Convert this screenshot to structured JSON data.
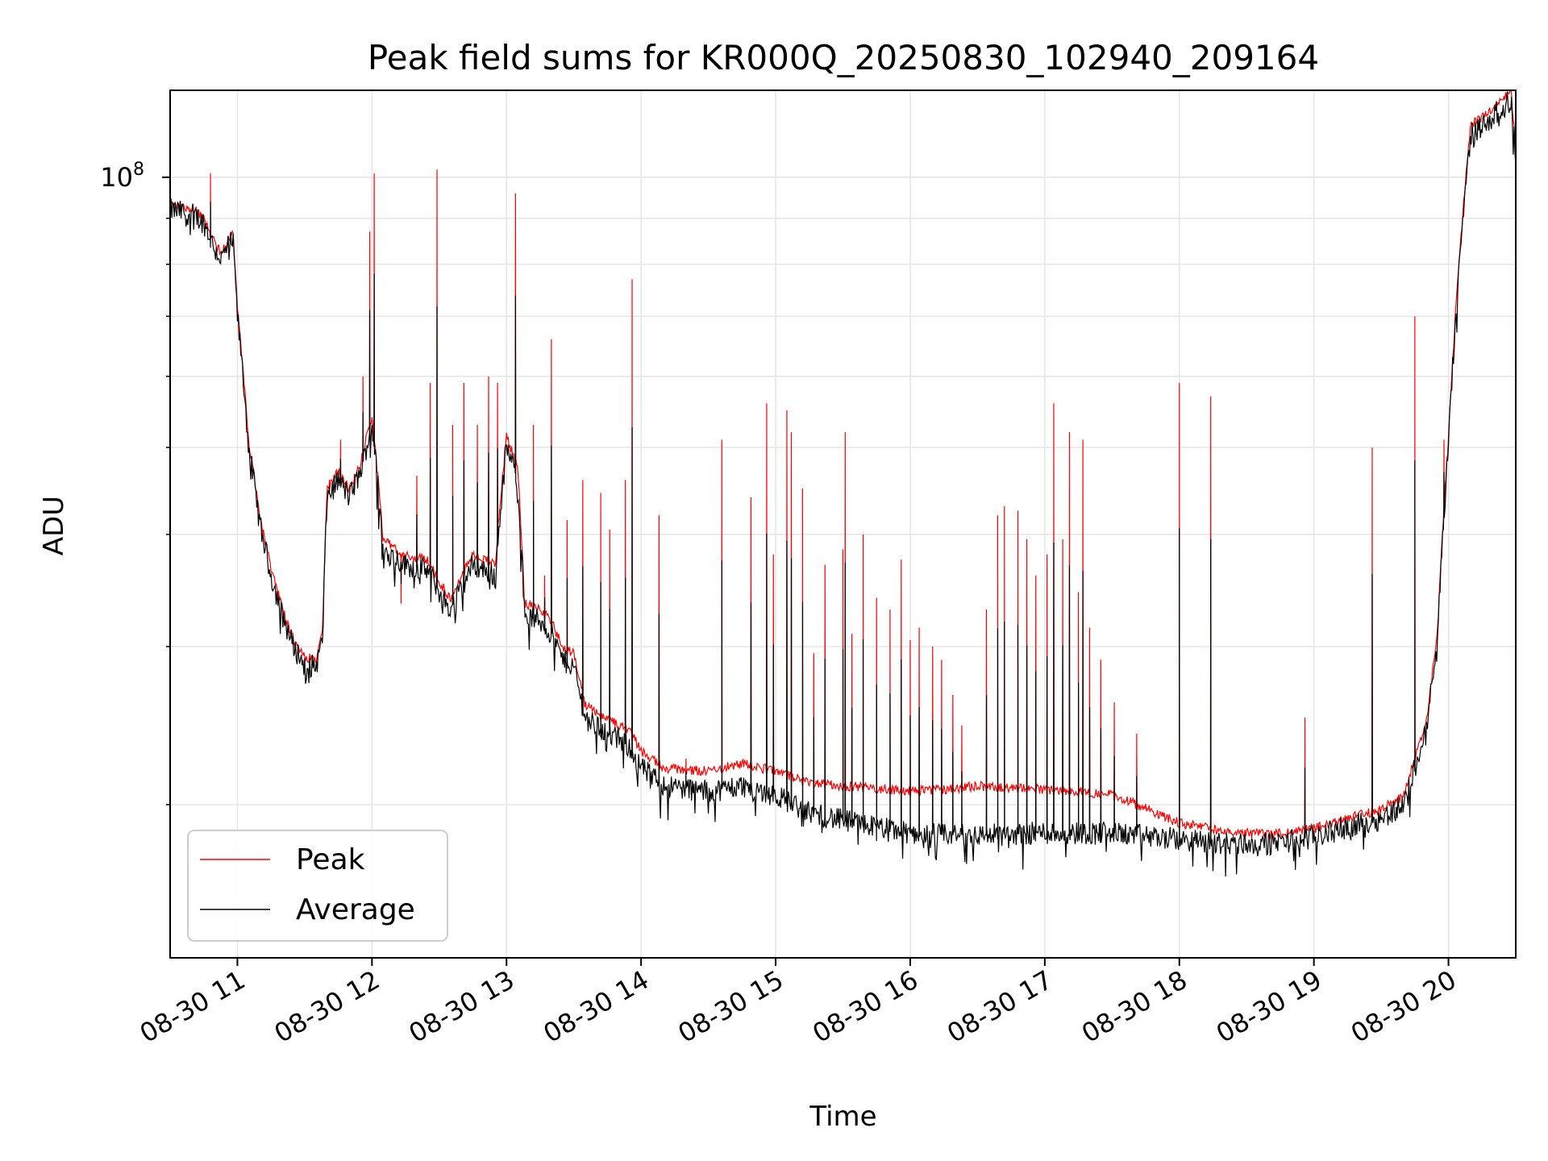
{
  "chart_data": {
    "type": "line",
    "title": "Peak field sums for KR000Q_20250830_102940_209164",
    "xlabel": "Time",
    "ylabel": "ADU",
    "y_scale": "log",
    "y_tick_label": {
      "base": "10",
      "exp": "8"
    },
    "y_major_tick_value": 100000000,
    "y_minor_tick_values": [
      20000000,
      30000000,
      40000000,
      50000000,
      60000000,
      70000000,
      80000000,
      90000000
    ],
    "ylim": [
      13500000,
      125000000
    ],
    "xlim": [
      "2025-08-30 10:30",
      "2025-08-30 20:30"
    ],
    "x_ticks": [
      {
        "time": "2025-08-30 11:00",
        "label": "08-30 11"
      },
      {
        "time": "2025-08-30 12:00",
        "label": "08-30 12"
      },
      {
        "time": "2025-08-30 13:00",
        "label": "08-30 13"
      },
      {
        "time": "2025-08-30 14:00",
        "label": "08-30 14"
      },
      {
        "time": "2025-08-30 15:00",
        "label": "08-30 15"
      },
      {
        "time": "2025-08-30 16:00",
        "label": "08-30 16"
      },
      {
        "time": "2025-08-30 17:00",
        "label": "08-30 17"
      },
      {
        "time": "2025-08-30 18:00",
        "label": "08-30 18"
      },
      {
        "time": "2025-08-30 19:00",
        "label": "08-30 19"
      },
      {
        "time": "2025-08-30 20:00",
        "label": "08-30 20"
      }
    ],
    "grid": true,
    "legend_position": "lower-left",
    "series": [
      {
        "name": "Peak",
        "color": "#ff0000"
      },
      {
        "name": "Average",
        "color": "#000000"
      }
    ],
    "baseline_average": [
      [
        "2025-08-30 10:30",
        92000000
      ],
      [
        "2025-08-30 10:40",
        91000000
      ],
      [
        "2025-08-30 10:45",
        89000000
      ],
      [
        "2025-08-30 10:50",
        83000000
      ],
      [
        "2025-08-30 10:53",
        81000000
      ],
      [
        "2025-08-30 10:56",
        84000000
      ],
      [
        "2025-08-30 10:58",
        85000000
      ],
      [
        "2025-08-30 11:00",
        70000000
      ],
      [
        "2025-08-30 11:05",
        50000000
      ],
      [
        "2025-08-30 11:10",
        41000000
      ],
      [
        "2025-08-30 11:15",
        36000000
      ],
      [
        "2025-08-30 11:20",
        32500000
      ],
      [
        "2025-08-30 11:25",
        30000000
      ],
      [
        "2025-08-30 11:30",
        28600000
      ],
      [
        "2025-08-30 11:35",
        28500000
      ],
      [
        "2025-08-30 11:38",
        30500000
      ],
      [
        "2025-08-30 11:40",
        44000000
      ],
      [
        "2025-08-30 11:45",
        46000000
      ],
      [
        "2025-08-30 11:50",
        44000000
      ],
      [
        "2025-08-30 11:55",
        47000000
      ],
      [
        "2025-08-30 12:00",
        53000000
      ],
      [
        "2025-08-30 12:05",
        38500000
      ],
      [
        "2025-08-30 12:15",
        37000000
      ],
      [
        "2025-08-30 12:25",
        36500000
      ],
      [
        "2025-08-30 12:30",
        34500000
      ],
      [
        "2025-08-30 12:35",
        33000000
      ],
      [
        "2025-08-30 12:45",
        37000000
      ],
      [
        "2025-08-30 12:55",
        36000000
      ],
      [
        "2025-08-30 13:00",
        50000000
      ],
      [
        "2025-08-30 13:05",
        46000000
      ],
      [
        "2025-08-30 13:08",
        32500000
      ],
      [
        "2025-08-30 13:15",
        32000000
      ],
      [
        "2025-08-30 13:20",
        31000000
      ],
      [
        "2025-08-30 13:25",
        29000000
      ],
      [
        "2025-08-30 13:30",
        28500000
      ],
      [
        "2025-08-30 13:35",
        25000000
      ],
      [
        "2025-08-30 13:45",
        24000000
      ],
      [
        "2025-08-30 13:55",
        23200000
      ],
      [
        "2025-08-30 14:00",
        22000000
      ],
      [
        "2025-08-30 14:10",
        21000000
      ],
      [
        "2025-08-30 14:30",
        20700000
      ],
      [
        "2025-08-30 14:45",
        21000000
      ],
      [
        "2025-08-30 15:00",
        20500000
      ],
      [
        "2025-08-30 15:15",
        19600000
      ],
      [
        "2025-08-30 15:30",
        19200000
      ],
      [
        "2025-08-30 15:45",
        18900000
      ],
      [
        "2025-08-30 16:00",
        18600000
      ],
      [
        "2025-08-30 16:15",
        18500000
      ],
      [
        "2025-08-30 16:30",
        18500000
      ],
      [
        "2025-08-30 17:00",
        18600000
      ],
      [
        "2025-08-30 17:30",
        18600000
      ],
      [
        "2025-08-30 18:00",
        18300000
      ],
      [
        "2025-08-30 18:20",
        18100000
      ],
      [
        "2025-08-30 18:40",
        18100000
      ],
      [
        "2025-08-30 19:00",
        18400000
      ],
      [
        "2025-08-30 19:15",
        18900000
      ],
      [
        "2025-08-30 19:30",
        19300000
      ],
      [
        "2025-08-30 19:40",
        20000000
      ],
      [
        "2025-08-30 19:50",
        24000000
      ],
      [
        "2025-08-30 19:55",
        30000000
      ],
      [
        "2025-08-30 20:00",
        50000000
      ],
      [
        "2025-08-30 20:05",
        80000000
      ],
      [
        "2025-08-30 20:10",
        112000000
      ],
      [
        "2025-08-30 20:15",
        114000000
      ],
      [
        "2025-08-30 20:20",
        117000000
      ],
      [
        "2025-08-30 20:28",
        122000000
      ],
      [
        "2025-08-30 20:30",
        104000000
      ]
    ],
    "baseline_peak_offset": [
      [
        "2025-08-30 10:30",
        1.0
      ],
      [
        "2025-08-30 13:30",
        1.02
      ],
      [
        "2025-08-30 15:00",
        1.05
      ],
      [
        "2025-08-30 15:30",
        1.08
      ],
      [
        "2025-08-30 16:00",
        1.1
      ],
      [
        "2025-08-30 16:30",
        1.12
      ],
      [
        "2025-08-30 17:30",
        1.09
      ],
      [
        "2025-08-30 18:00",
        1.03
      ],
      [
        "2025-08-30 18:40",
        1.01
      ],
      [
        "2025-08-30 20:30",
        1.01
      ]
    ],
    "peak_spikes": [
      [
        "2025-08-30 10:48",
        101000000
      ],
      [
        "2025-08-30 11:41",
        46000000
      ],
      [
        "2025-08-30 11:46",
        51000000
      ],
      [
        "2025-08-30 11:52",
        46000000
      ],
      [
        "2025-08-30 11:56",
        60000000
      ],
      [
        "2025-08-30 11:59",
        87000000
      ],
      [
        "2025-08-30 12:01",
        101000000
      ],
      [
        "2025-08-30 12:13",
        33500000
      ],
      [
        "2025-08-30 12:20",
        46500000
      ],
      [
        "2025-08-30 12:26",
        59000000
      ],
      [
        "2025-08-30 12:29",
        102000000
      ],
      [
        "2025-08-30 12:36",
        53000000
      ],
      [
        "2025-08-30 12:41",
        59000000
      ],
      [
        "2025-08-30 12:47",
        53000000
      ],
      [
        "2025-08-30 12:52",
        60000000
      ],
      [
        "2025-08-30 12:56",
        59000000
      ],
      [
        "2025-08-30 13:04",
        96000000
      ],
      [
        "2025-08-30 13:12",
        53000000
      ],
      [
        "2025-08-30 13:17",
        36000000
      ],
      [
        "2025-08-30 13:20",
        66000000
      ],
      [
        "2025-08-30 13:27",
        41500000
      ],
      [
        "2025-08-30 13:34",
        46000000
      ],
      [
        "2025-08-30 13:42",
        44500000
      ],
      [
        "2025-08-30 13:46",
        40500000
      ],
      [
        "2025-08-30 13:53",
        46000000
      ],
      [
        "2025-08-30 13:56",
        77000000
      ],
      [
        "2025-08-30 14:08",
        42000000
      ],
      [
        "2025-08-30 14:20",
        22500000
      ],
      [
        "2025-08-30 14:36",
        51000000
      ],
      [
        "2025-08-30 14:49",
        44000000
      ],
      [
        "2025-08-30 14:56",
        56000000
      ],
      [
        "2025-08-30 14:59",
        38000000
      ],
      [
        "2025-08-30 15:05",
        55000000
      ],
      [
        "2025-08-30 15:07",
        52000000
      ],
      [
        "2025-08-30 15:12",
        45000000
      ],
      [
        "2025-08-30 15:17",
        29500000
      ],
      [
        "2025-08-30 15:22",
        37000000
      ],
      [
        "2025-08-30 15:30",
        38500000
      ],
      [
        "2025-08-30 15:31",
        52000000
      ],
      [
        "2025-08-30 15:34",
        31000000
      ],
      [
        "2025-08-30 15:39",
        40000000
      ],
      [
        "2025-08-30 15:45",
        34000000
      ],
      [
        "2025-08-30 15:51",
        33000000
      ],
      [
        "2025-08-30 15:56",
        37500000
      ],
      [
        "2025-08-30 16:00",
        30500000
      ],
      [
        "2025-08-30 16:04",
        31500000
      ],
      [
        "2025-08-30 16:10",
        30000000
      ],
      [
        "2025-08-30 16:14",
        29000000
      ],
      [
        "2025-08-30 16:19",
        26500000
      ],
      [
        "2025-08-30 16:23",
        24500000
      ],
      [
        "2025-08-30 16:34",
        33000000
      ],
      [
        "2025-08-30 16:39",
        42000000
      ],
      [
        "2025-08-30 16:42",
        43000000
      ],
      [
        "2025-08-30 16:48",
        42500000
      ],
      [
        "2025-08-30 16:52",
        39500000
      ],
      [
        "2025-08-30 16:56",
        36000000
      ],
      [
        "2025-08-30 17:01",
        38000000
      ],
      [
        "2025-08-30 17:04",
        56000000
      ],
      [
        "2025-08-30 17:08",
        39500000
      ],
      [
        "2025-08-30 17:11",
        52000000
      ],
      [
        "2025-08-30 17:15",
        34500000
      ],
      [
        "2025-08-30 17:17",
        51000000
      ],
      [
        "2025-08-30 17:20",
        31500000
      ],
      [
        "2025-08-30 17:25",
        29000000
      ],
      [
        "2025-08-30 17:31",
        26000000
      ],
      [
        "2025-08-30 17:41",
        24000000
      ],
      [
        "2025-08-30 18:00",
        59000000
      ],
      [
        "2025-08-30 18:14",
        57000000
      ],
      [
        "2025-08-30 18:56",
        25000000
      ],
      [
        "2025-08-30 19:26",
        50000000
      ],
      [
        "2025-08-30 19:45",
        70000000
      ],
      [
        "2025-08-30 19:58",
        51000000
      ]
    ]
  }
}
